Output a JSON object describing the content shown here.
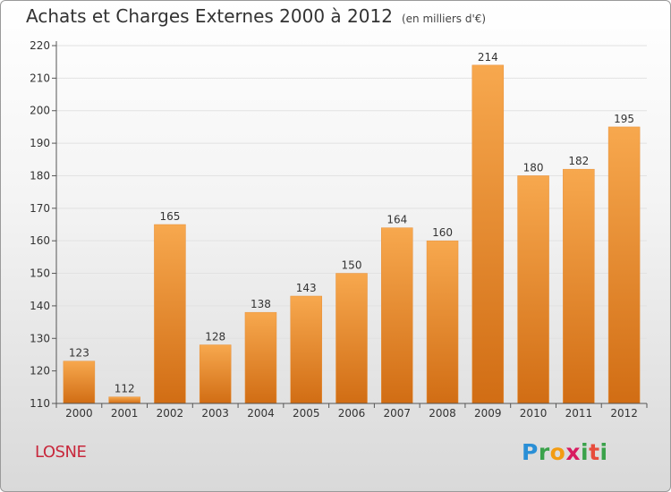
{
  "title": "Achats et Charges Externes 2000 à 2012",
  "subtitle": "(en milliers d'€)",
  "town": "LOSNE",
  "logo": {
    "letters": [
      "P",
      "r",
      "o",
      "x",
      "i",
      "t",
      "i"
    ],
    "colors": [
      "#2a8fd6",
      "#3aa24a",
      "#f39c12",
      "#d81b60",
      "#3aa24a",
      "#e74c3c",
      "#3aa24a"
    ]
  },
  "colors": {
    "bar_top": "#f7a84e",
    "bar_bottom": "#d16d14",
    "town": "#c8283c"
  },
  "chart_data": {
    "type": "bar",
    "categories": [
      "2000",
      "2001",
      "2002",
      "2003",
      "2004",
      "2005",
      "2006",
      "2007",
      "2008",
      "2009",
      "2010",
      "2011",
      "2012"
    ],
    "values": [
      123,
      112,
      165,
      128,
      138,
      143,
      150,
      164,
      160,
      214,
      180,
      182,
      195
    ],
    "ylim": [
      110,
      220
    ],
    "yticks": [
      110,
      120,
      130,
      140,
      150,
      160,
      170,
      180,
      190,
      200,
      210,
      220
    ],
    "grid": true
  }
}
